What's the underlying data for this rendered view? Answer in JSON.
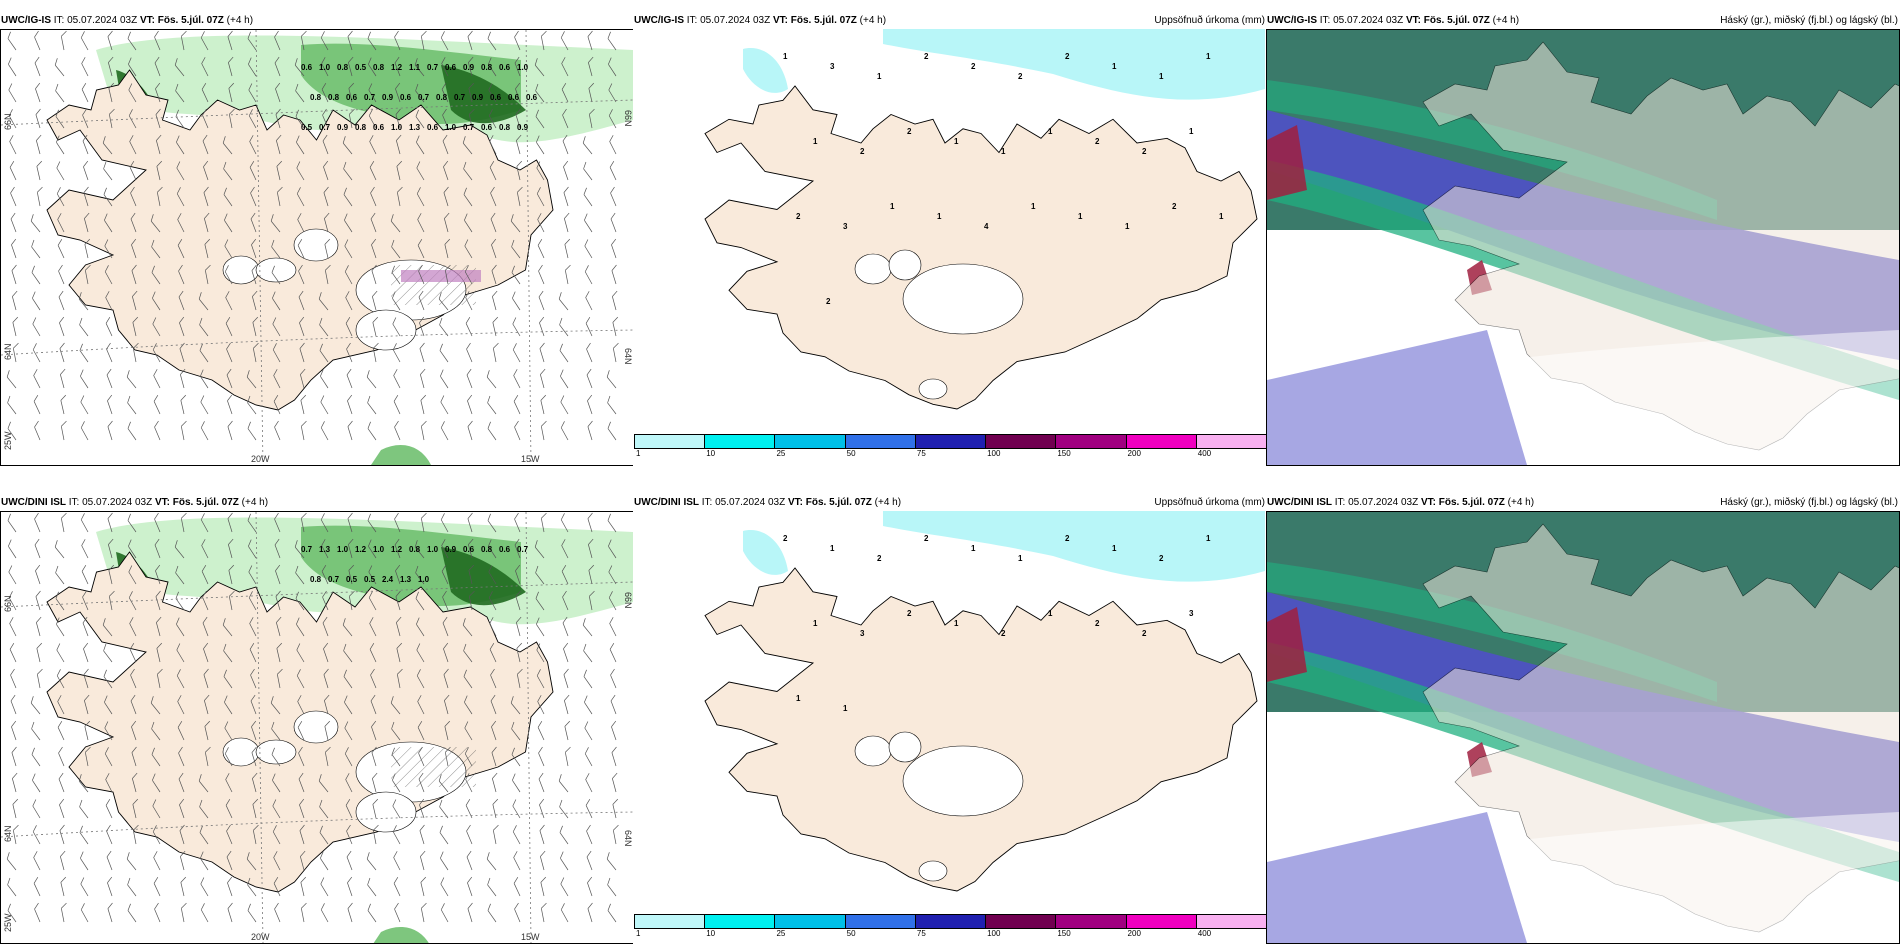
{
  "panels": [
    {
      "model": "UWC/IG-IS",
      "it": "IT: 05.07.2024 03Z",
      "vt": "VT: Fös. 5.júl. 07Z",
      "lead": "(+4 h)",
      "right": "",
      "lat_labels": [
        "66N",
        "64N"
      ],
      "lon_labels": [
        "20W",
        "15W"
      ],
      "edge_labels": [
        "66N",
        "64N",
        "25W"
      ],
      "values": [
        "0.6",
        "1.0",
        "0.8",
        "0.5",
        "0.8",
        "1.2",
        "1.1",
        "0.7",
        "0.6",
        "0.9",
        "0.8",
        "0.6",
        "1.0",
        "0.8",
        "0.8",
        "0.6",
        "0.7",
        "0.9",
        "0.6",
        "0.7",
        "0.8",
        "0.7",
        "0.9",
        "0.6",
        "0.6",
        "0.6",
        "0.5",
        "0.7",
        "0.9",
        "0.8",
        "0.6",
        "1.0",
        "1.3",
        "0.6",
        "1.0",
        "0.7",
        "0.6",
        "0.8",
        "0.9"
      ]
    },
    {
      "model": "UWC/IG-IS",
      "it": "IT: 05.07.2024 03Z",
      "vt": "VT: Fös. 5.júl. 07Z",
      "lead": "(+4 h)",
      "right": "Uppsöfnuð úrkoma (mm)",
      "values": [
        "1",
        "3",
        "1",
        "2",
        "2",
        "2",
        "2",
        "1",
        "1",
        "1",
        "1",
        "2",
        "2",
        "1",
        "1",
        "1",
        "2",
        "2",
        "1",
        "2",
        "3",
        "1",
        "1",
        "4",
        "1",
        "1",
        "1",
        "2",
        "1",
        "2"
      ]
    },
    {
      "model": "UWC/IG-IS",
      "it": "IT: 05.07.2024 03Z",
      "vt": "VT: Fös. 5.júl. 07Z",
      "lead": "(+4 h)",
      "right": "Háský (gr.), miðský (fj.bl.) og lágský (bl.)"
    },
    {
      "model": "UWC/DINI ISL",
      "it": "IT: 05.07.2024 03Z",
      "vt": "VT: Fös. 5.júl. 07Z",
      "lead": "(+4 h)",
      "right": "",
      "lat_labels": [
        "66N",
        "64N"
      ],
      "lon_labels": [
        "20W",
        "15W"
      ],
      "edge_labels": [
        "66N",
        "64N",
        "25W"
      ],
      "values": [
        "0.7",
        "1.3",
        "1.0",
        "1.2",
        "1.0",
        "1.2",
        "0.8",
        "1.0",
        "0.9",
        "0.6",
        "0.8",
        "0.6",
        "0.7",
        "0.8",
        "0.7",
        "0.5",
        "0.5",
        "2.4",
        "1.3",
        "1.0"
      ]
    },
    {
      "model": "UWC/DINI ISL",
      "it": "IT: 05.07.2024 03Z",
      "vt": "VT: Fös. 5.júl. 07Z",
      "lead": "(+4 h)",
      "right": "Uppsöfnuð úrkoma (mm)",
      "values": [
        "2",
        "1",
        "2",
        "2",
        "1",
        "1",
        "2",
        "1",
        "2",
        "1",
        "1",
        "3",
        "2",
        "1",
        "2",
        "1",
        "2",
        "2",
        "3",
        "1",
        "1"
      ]
    },
    {
      "model": "UWC/DINI ISL",
      "it": "IT: 05.07.2024 03Z",
      "vt": "VT: Fös. 5.júl. 07Z",
      "lead": "(+4 h)",
      "right": "Háský (gr.), miðský (fj.bl.) og lágský (bl.)"
    }
  ],
  "legend": {
    "ticks": [
      "1",
      "10",
      "25",
      "50",
      "75",
      "100",
      "150",
      "200",
      "400"
    ],
    "colors": [
      "#bff7f9",
      "#00f0f0",
      "#00c0e8",
      "#3070e8",
      "#2020b0",
      "#700050",
      "#a00080",
      "#f000c0",
      "#f8b0f0"
    ]
  },
  "colors": {
    "land": "#f9eadb",
    "land_cloud": "#efe4da",
    "precip_light": "#c8f0c8",
    "precip_mid": "#70c070",
    "precip_dark": "#206a20",
    "hi_cloud": "#5050c8",
    "mid_cloud": "#20b080",
    "low_cloud": "#a02040",
    "ocean_cloud": "#3a7a6a"
  }
}
